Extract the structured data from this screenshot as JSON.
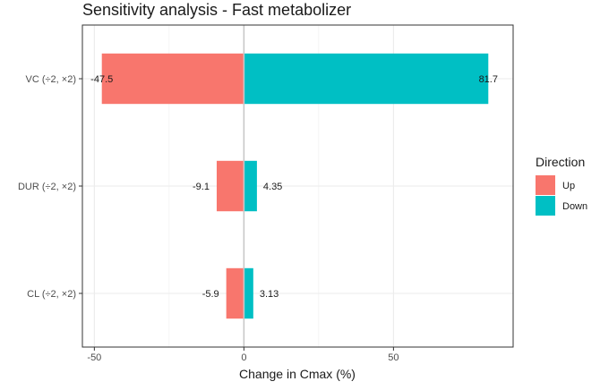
{
  "chart_data": {
    "type": "bar",
    "orientation": "horizontal",
    "title": "Sensitivity analysis - Fast metabolizer",
    "xlabel": "Change in Cmax (%)",
    "ylabel": "",
    "categories": [
      "VC (÷2, ×2)",
      "DUR (÷2, ×2)",
      "CL (÷2, ×2)"
    ],
    "series": [
      {
        "name": "Up",
        "color": "#F8766D",
        "values": [
          -47.5,
          -9.1,
          -5.9
        ],
        "labels": [
          "-47.5",
          "-9.1",
          "-5.9"
        ]
      },
      {
        "name": "Down",
        "color": "#00BFC4",
        "values": [
          81.7,
          4.35,
          3.13
        ],
        "labels": [
          "81.7",
          "4.35",
          "3.13"
        ]
      }
    ],
    "xlim": [
      -54,
      90
    ],
    "xticks": [
      -50,
      0,
      50
    ],
    "xtick_labels": [
      "-50",
      "0",
      "50"
    ],
    "grid": true,
    "reference_line": 0,
    "legend": {
      "title": "Direction",
      "position": "right",
      "items": [
        "Up",
        "Down"
      ]
    }
  }
}
